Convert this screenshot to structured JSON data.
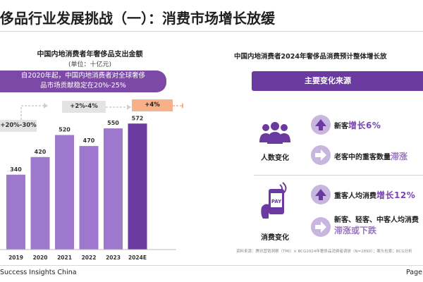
{
  "page": {
    "title": "侈品行业发展挑战（一）：消费市场增长放缓",
    "footer_left": "Success Insights China",
    "footer_right": "Page"
  },
  "left_panel": {
    "highlight_lines": [
      "自2020年起，中国内地消费者对全球奢侈",
      "品市场贡献稳定在20%-25%"
    ],
    "growth_labels": [
      "+20%-30%",
      "+2%-4%",
      "+4%"
    ]
  },
  "chart_data": {
    "type": "bar",
    "title": "中国内地消费者年奢侈品支出金额",
    "unit_label": "(单位：十亿元)",
    "categories": [
      "2019",
      "2020",
      "2021",
      "2022",
      "2023",
      "2024E"
    ],
    "values": [
      340,
      420,
      520,
      470,
      550,
      572
    ],
    "ylim": [
      0,
      640
    ],
    "colors": {
      "actual": "#9d78cd",
      "estimate": "#6a3aa0"
    }
  },
  "right_panel": {
    "title": "中国内地消费者2024年奢侈品消费预计整体增长放",
    "banner": "主要变化来源",
    "factors": [
      {
        "label": "人数变化",
        "icon": "people-group-icon",
        "changes": [
          {
            "icon": "up-arrow-icon",
            "prefix": "新客",
            "highlight": "增长6%",
            "style": "up"
          },
          {
            "icon": "right-arrow-icon",
            "prefix": "老客中的重客数量",
            "highlight": "滞涨",
            "style": "flat"
          }
        ]
      },
      {
        "label": "消费变化",
        "icon": "mobile-pay-icon",
        "pay_text": "PAY",
        "changes": [
          {
            "icon": "up-arrow-icon",
            "prefix": "重客人均消费",
            "highlight": "增长12%",
            "style": "up"
          },
          {
            "icon": "right-arrow-icon",
            "prefix": "新客、轻客、中客人均消费",
            "highlight": "滞涨或下跌",
            "style": "flat"
          }
        ]
      }
    ],
    "source": "资料来源：腾讯营销洞察（TMI）× BCG2024年奢侈品消费者调研（N=2890）；案头检索；BCG分析"
  },
  "colors": {
    "purple_dark": "#6a3aa0",
    "purple_light": "#9d78cd",
    "circle": "#c9b6df",
    "orange": "#f7b088"
  }
}
